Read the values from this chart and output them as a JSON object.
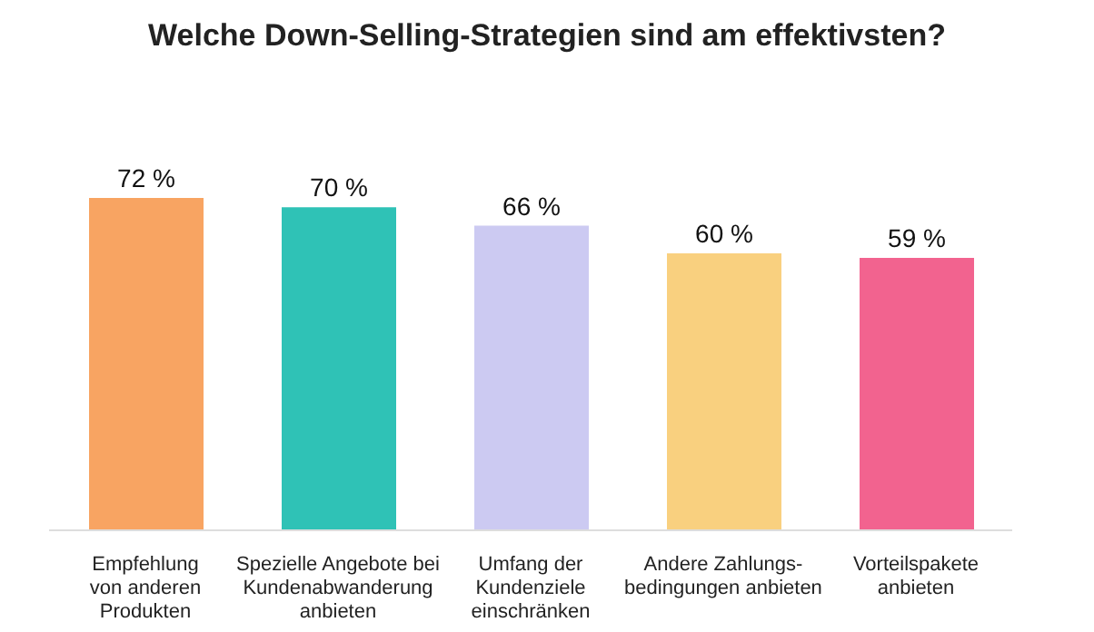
{
  "chart_data": {
    "type": "bar",
    "title": "Welche Down-Selling-Strategien sind am effektivsten?",
    "categories": [
      "Empfehlung\nvon anderen\nProdukten",
      "Spezielle Angebote bei\nKundenabwanderung\nanbieten",
      "Umfang der\nKundenziele\neinschränken",
      "Andere Zahlungs-\nbedingungen anbieten",
      "Vorteilspakete\nanbieten"
    ],
    "values": [
      72,
      70,
      66,
      60,
      59
    ],
    "colors": [
      "#f8a462",
      "#2fc2b6",
      "#cccaf2",
      "#f9d07f",
      "#f2638f"
    ],
    "value_labels": [
      "72 %",
      "70 %",
      "66 %",
      "60 %",
      "59 %"
    ]
  }
}
